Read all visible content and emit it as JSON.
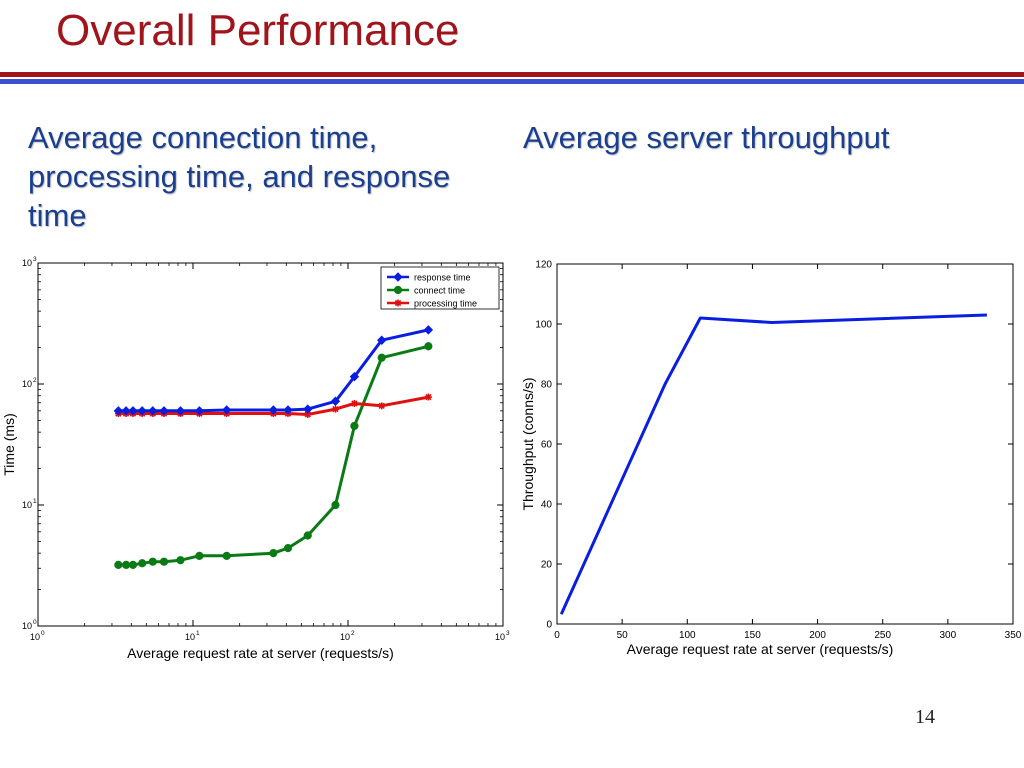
{
  "slide": {
    "title": "Overall Performance",
    "page_number": "14",
    "left_heading": "Average connection time, processing time, and response time",
    "right_heading": "Average server throughput"
  },
  "colors": {
    "title": "#a0141c",
    "heading": "#1a3f8f",
    "rule_red": "#a0141c",
    "rule_blue": "#3b4fd1"
  },
  "chart_data": [
    {
      "type": "line",
      "xlabel": "Average request rate at server (requests/s)",
      "ylabel": "Time (ms)",
      "xscale": "log",
      "yscale": "log",
      "xlim": [
        1,
        1000
      ],
      "ylim": [
        1,
        1000
      ],
      "x_ticks": [
        "10^0",
        "10^1",
        "10^2",
        "10^3"
      ],
      "y_ticks": [
        "10^0",
        "10^1",
        "10^2",
        "10^3"
      ],
      "legend_position": "top-right",
      "grid": false,
      "x": [
        3.3,
        3.7,
        4.1,
        4.7,
        5.5,
        6.5,
        8.3,
        11,
        16.5,
        33,
        41,
        55,
        83,
        110,
        165,
        330
      ],
      "series": [
        {
          "name": "response time",
          "color": "#0a1ee0",
          "marker": "diamond",
          "values": [
            60,
            60,
            60,
            60,
            60,
            60,
            60,
            60,
            61,
            61,
            61,
            62,
            72,
            115,
            230,
            280
          ]
        },
        {
          "name": "connect time",
          "color": "#0a7a14",
          "marker": "circle",
          "values": [
            3.2,
            3.2,
            3.2,
            3.3,
            3.4,
            3.4,
            3.5,
            3.8,
            3.8,
            4.0,
            4.4,
            5.6,
            10,
            45,
            165,
            205
          ]
        },
        {
          "name": "processing time",
          "color": "#e01010",
          "marker": "star",
          "values": [
            57,
            57,
            57,
            57,
            57,
            57,
            57,
            57,
            57,
            57,
            57,
            56,
            62,
            69,
            66,
            78
          ]
        }
      ]
    },
    {
      "type": "line",
      "xlabel": "Average request rate at server (requests/s)",
      "ylabel": "Throughput (conns/s)",
      "xlim": [
        0,
        350
      ],
      "ylim": [
        0,
        120
      ],
      "x_ticks": [
        "0",
        "50",
        "100",
        "150",
        "200",
        "250",
        "300",
        "350"
      ],
      "y_ticks": [
        "0",
        "20",
        "40",
        "60",
        "80",
        "100",
        "120"
      ],
      "grid": false,
      "series": [
        {
          "color": "#0a1ee0",
          "x": [
            3.3,
            83,
            110,
            165,
            330
          ],
          "values": [
            3.3,
            80,
            102,
            100.5,
            103
          ]
        }
      ]
    }
  ]
}
